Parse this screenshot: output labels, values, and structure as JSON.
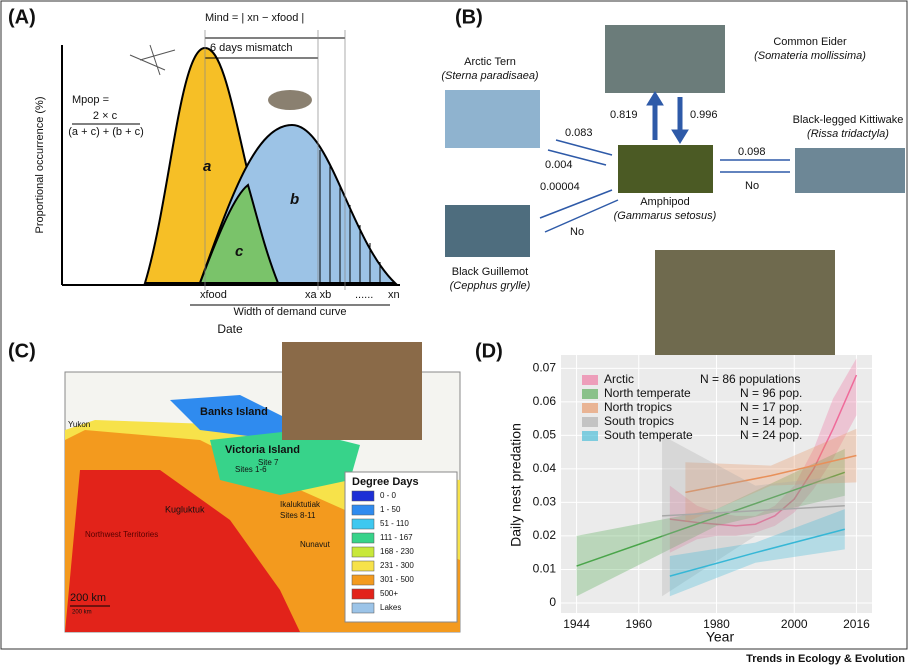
{
  "panel_a": {
    "label": "(A)",
    "mind": "Mind = | xn − xfood |",
    "mismatch": "6 days mismatch",
    "mpop": "Mpop =",
    "numerator": "2 × c",
    "denominator": "(a + c) + (b + c)",
    "area_a": "a",
    "area_b": "b",
    "area_c": "c",
    "y_label": "Proportional occurrence (%)",
    "x_food": "xfood",
    "x_ab": "xa xb",
    "dots": "......",
    "x_n": "xn",
    "width": "Width of demand curve",
    "x_label": "Date"
  },
  "panel_b": {
    "label": "(B)",
    "nodes": [
      {
        "name": "Arctic Tern",
        "latin": "(Sterna paradisaea)"
      },
      {
        "name": "Common Eider",
        "latin": "(Somateria mollissima)"
      },
      {
        "name": "Black-legged Kittiwake",
        "latin": "(Rissa tridactyla)"
      },
      {
        "name": "Black Guillemot",
        "latin": "(Cepphus grylle)"
      },
      {
        "name": "Amphipod",
        "latin": "(Gammarus setosus)"
      }
    ],
    "edges": [
      "0.819",
      "0.996",
      "0.083",
      "0.004",
      "0.098",
      "No",
      "0.00004",
      "No"
    ]
  },
  "panel_c": {
    "label": "(C)",
    "places": [
      "Banks Island",
      "Victoria Island",
      "Yukon",
      "Kugluktuk",
      "Ikaluktutiak",
      "Sites 8-11",
      "Sites 1-6",
      "Site 7",
      "Northwest Territories",
      "Nunavut"
    ],
    "scale": "200 km",
    "scale_small": "200 km",
    "legend_title": "Degree Days",
    "legend": [
      {
        "label": "0 - 0",
        "color": "#1d2fd6"
      },
      {
        "label": "1 - 50",
        "color": "#2f8bef"
      },
      {
        "label": "51 - 110",
        "color": "#3ec8f0"
      },
      {
        "label": "111 - 167",
        "color": "#37d38a"
      },
      {
        "label": "168 - 230",
        "color": "#c8e83a"
      },
      {
        "label": "231 - 300",
        "color": "#f7e24a"
      },
      {
        "label": "301 - 500",
        "color": "#f39a1e"
      },
      {
        "label": "500+",
        "color": "#e2231a"
      },
      {
        "label": "Lakes",
        "color": "#9cc4e8"
      }
    ]
  },
  "chart_data": {
    "type": "line",
    "panel_label": "(D)",
    "y_label": "Daily nest predation",
    "x_label": "Year",
    "xlim": [
      1940,
      2020
    ],
    "ylim": [
      -0.003,
      0.074
    ],
    "xticks": [
      1944,
      1960,
      1980,
      2000,
      2016
    ],
    "yticks": [
      0,
      0.01,
      0.02,
      0.03,
      0.04,
      0.05,
      0.06,
      0.07
    ],
    "series": [
      {
        "name": "Arctic",
        "n_label": "N = 86 populations",
        "color": "#ef6b9a",
        "x": [
          1968,
          1975,
          1980,
          1985,
          1990,
          1995,
          2000,
          2005,
          2010,
          2016
        ],
        "values": [
          0.025,
          0.024,
          0.0235,
          0.023,
          0.0235,
          0.026,
          0.031,
          0.04,
          0.052,
          0.068
        ],
        "lower": [
          0.015,
          0.019,
          0.02,
          0.02,
          0.021,
          0.023,
          0.027,
          0.034,
          0.043,
          0.056
        ],
        "upper": [
          0.035,
          0.029,
          0.027,
          0.026,
          0.026,
          0.029,
          0.035,
          0.046,
          0.061,
          0.073
        ]
      },
      {
        "name": "North temperate",
        "n_label": "N = 96 pop.",
        "color": "#4aa54a",
        "x": [
          1944,
          1980,
          2013
        ],
        "values": [
          0.011,
          0.0256,
          0.039
        ],
        "lower": [
          0.002,
          0.023,
          0.032
        ],
        "upper": [
          0.02,
          0.028,
          0.046
        ]
      },
      {
        "name": "North tropics",
        "n_label": "N = 17 pop.",
        "color": "#e8905a",
        "x": [
          1972,
          1994,
          2016
        ],
        "values": [
          0.033,
          0.038,
          0.044
        ],
        "lower": [
          0.024,
          0.035,
          0.036
        ],
        "upper": [
          0.042,
          0.041,
          0.052
        ]
      },
      {
        "name": "South tropics",
        "n_label": "N = 14 pop.",
        "color": "#a8a8a8",
        "x": [
          1966,
          1990,
          2013
        ],
        "values": [
          0.026,
          0.0275,
          0.029
        ],
        "lower": [
          0.002,
          0.02,
          0.02
        ],
        "upper": [
          0.05,
          0.035,
          0.038
        ]
      },
      {
        "name": "South temperate",
        "n_label": "N = 24 pop.",
        "color": "#36b7d6",
        "x": [
          1968,
          1990,
          2013
        ],
        "values": [
          0.008,
          0.015,
          0.022
        ],
        "lower": [
          0.002,
          0.012,
          0.016
        ],
        "upper": [
          0.014,
          0.018,
          0.028
        ]
      }
    ]
  },
  "footer": "Trends in Ecology & Evolution"
}
